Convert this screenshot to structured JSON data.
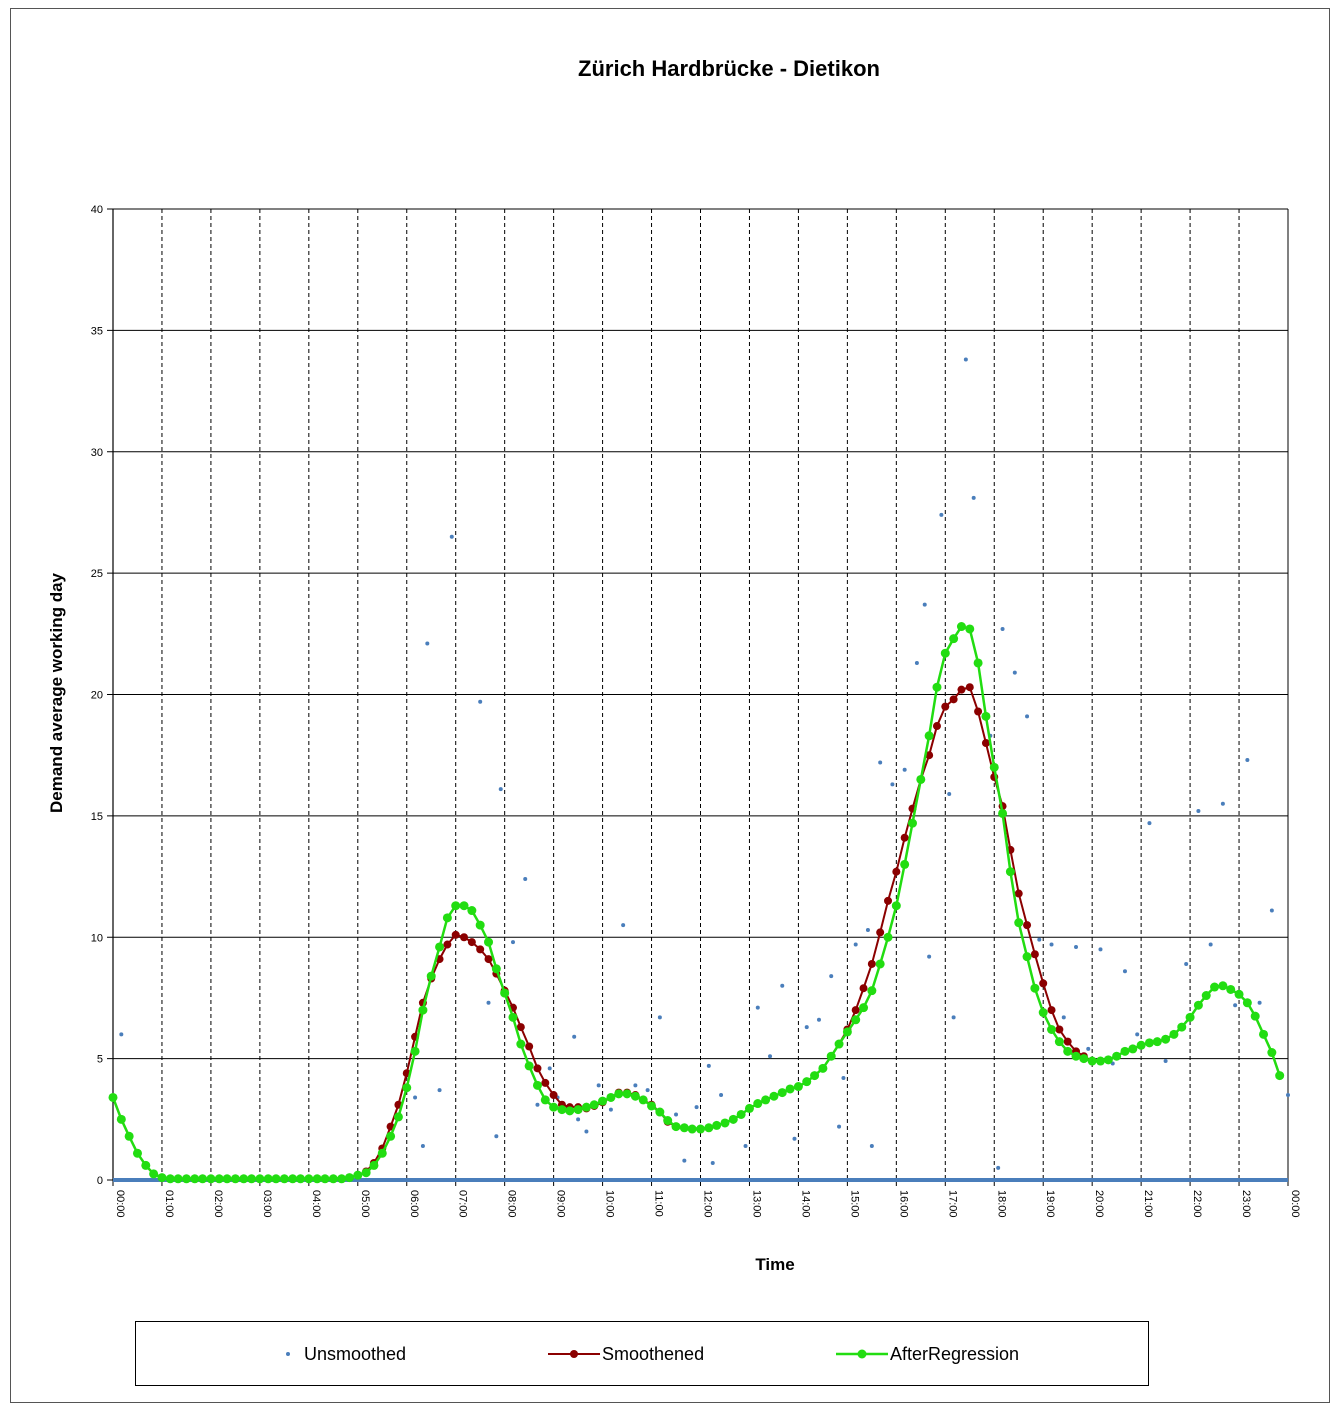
{
  "chart_data": {
    "type": "line",
    "title": "Zürich Hardbrücke - Dietikon",
    "xlabel": "Time",
    "ylabel": "Demand  average working day",
    "ylim": [
      0,
      40
    ],
    "yticks": [
      0,
      5,
      10,
      15,
      20,
      25,
      30,
      35,
      40
    ],
    "xlim": [
      0,
      24
    ],
    "xtick_labels": [
      "00:00",
      "01:00",
      "02:00",
      "03:00",
      "04:00",
      "05:00",
      "06:00",
      "07:00",
      "08:00",
      "09:00",
      "10:00",
      "11:00",
      "12:00",
      "13:00",
      "14:00",
      "15:00",
      "16:00",
      "17:00",
      "18:00",
      "19:00",
      "20:00",
      "21:00",
      "22:00",
      "23:00",
      "00:00"
    ],
    "grid": "horizontal solid, vertical dashed",
    "legend_position": "bottom",
    "series": [
      {
        "name": "Unsmoothed",
        "style": "markers",
        "color": "#4a7ebb",
        "points": [
          [
            0.17,
            6.0
          ],
          [
            6.17,
            3.4
          ],
          [
            6.33,
            1.4
          ],
          [
            6.42,
            22.1
          ],
          [
            6.67,
            3.7
          ],
          [
            6.92,
            26.5
          ],
          [
            7.5,
            19.7
          ],
          [
            7.67,
            7.3
          ],
          [
            7.83,
            1.8
          ],
          [
            7.92,
            16.1
          ],
          [
            8.17,
            9.8
          ],
          [
            8.42,
            12.4
          ],
          [
            8.67,
            3.1
          ],
          [
            8.92,
            4.6
          ],
          [
            9.08,
            3.4
          ],
          [
            9.42,
            5.9
          ],
          [
            9.5,
            2.5
          ],
          [
            9.67,
            2.0
          ],
          [
            9.92,
            3.9
          ],
          [
            10.17,
            2.9
          ],
          [
            10.42,
            10.5
          ],
          [
            10.67,
            3.9
          ],
          [
            10.92,
            3.7
          ],
          [
            11.17,
            6.7
          ],
          [
            11.5,
            2.7
          ],
          [
            11.67,
            0.8
          ],
          [
            11.92,
            3.0
          ],
          [
            12.17,
            4.7
          ],
          [
            12.25,
            0.7
          ],
          [
            12.42,
            3.5
          ],
          [
            12.67,
            2.4
          ],
          [
            12.92,
            1.4
          ],
          [
            13.17,
            7.1
          ],
          [
            13.42,
            5.1
          ],
          [
            13.67,
            8.0
          ],
          [
            13.92,
            1.7
          ],
          [
            14.17,
            6.3
          ],
          [
            14.42,
            6.6
          ],
          [
            14.67,
            8.4
          ],
          [
            14.83,
            2.2
          ],
          [
            14.92,
            4.2
          ],
          [
            15.17,
            9.7
          ],
          [
            15.42,
            10.3
          ],
          [
            15.5,
            1.4
          ],
          [
            15.67,
            17.2
          ],
          [
            15.92,
            16.3
          ],
          [
            16.17,
            16.9
          ],
          [
            16.42,
            21.3
          ],
          [
            16.58,
            23.7
          ],
          [
            16.67,
            9.2
          ],
          [
            16.92,
            27.4
          ],
          [
            17.08,
            15.9
          ],
          [
            17.17,
            6.7
          ],
          [
            17.42,
            33.8
          ],
          [
            17.58,
            28.1
          ],
          [
            17.92,
            18.3
          ],
          [
            18.08,
            0.5
          ],
          [
            18.17,
            22.7
          ],
          [
            18.42,
            20.9
          ],
          [
            18.67,
            19.1
          ],
          [
            18.92,
            9.9
          ],
          [
            19.17,
            9.7
          ],
          [
            19.42,
            6.7
          ],
          [
            19.67,
            9.6
          ],
          [
            19.92,
            5.4
          ],
          [
            20.17,
            9.5
          ],
          [
            20.42,
            4.8
          ],
          [
            20.67,
            8.6
          ],
          [
            20.92,
            6.0
          ],
          [
            21.17,
            14.7
          ],
          [
            21.5,
            4.9
          ],
          [
            21.92,
            8.9
          ],
          [
            22.17,
            15.2
          ],
          [
            22.42,
            9.7
          ],
          [
            22.67,
            15.5
          ],
          [
            22.92,
            7.2
          ],
          [
            23.17,
            17.3
          ],
          [
            23.42,
            7.3
          ],
          [
            23.67,
            11.1
          ],
          [
            24.0,
            3.5
          ]
        ]
      },
      {
        "name": "Smoothened",
        "style": "line-markers",
        "color": "#8b0000",
        "x": [
          0.0,
          0.17,
          0.33,
          0.5,
          0.67,
          0.83,
          1.0,
          1.17,
          1.33,
          1.5,
          1.67,
          1.83,
          2.0,
          2.17,
          2.33,
          2.5,
          2.67,
          2.83,
          3.0,
          3.17,
          3.33,
          3.5,
          3.67,
          3.83,
          4.0,
          4.17,
          4.33,
          4.5,
          4.67,
          4.83,
          5.0,
          5.17,
          5.33,
          5.5,
          5.67,
          5.83,
          6.0,
          6.17,
          6.33,
          6.5,
          6.67,
          6.83,
          7.0,
          7.17,
          7.33,
          7.5,
          7.67,
          7.83,
          8.0,
          8.17,
          8.33,
          8.5,
          8.67,
          8.83,
          9.0,
          9.17,
          9.33,
          9.5,
          9.67,
          9.83,
          10.0,
          10.17,
          10.33,
          10.5,
          10.67,
          10.83,
          11.0,
          11.17,
          11.33,
          11.5,
          11.67,
          11.83,
          12.0,
          12.17,
          12.33,
          12.5,
          12.67,
          12.83,
          13.0,
          13.17,
          13.33,
          13.5,
          13.67,
          13.83,
          14.0,
          14.17,
          14.33,
          14.5,
          14.67,
          14.83,
          15.0,
          15.17,
          15.33,
          15.5,
          15.67,
          15.83,
          16.0,
          16.17,
          16.33,
          16.5,
          16.67,
          16.83,
          17.0,
          17.17,
          17.33,
          17.5,
          17.67,
          17.83,
          18.0,
          18.17,
          18.33,
          18.5,
          18.67,
          18.83,
          19.0,
          19.17,
          19.33,
          19.5,
          19.67,
          19.83,
          20.0,
          20.17,
          20.33,
          20.5,
          20.67,
          20.83,
          21.0,
          21.17,
          21.33,
          21.5,
          21.67,
          21.83,
          22.0,
          22.17,
          22.33,
          22.5,
          22.67,
          22.83,
          23.0,
          23.17,
          23.33,
          23.5,
          23.67,
          23.83
        ],
        "values": [
          3.4,
          2.5,
          1.8,
          1.1,
          0.6,
          0.25,
          0.1,
          0.05,
          0.05,
          0.05,
          0.05,
          0.05,
          0.05,
          0.05,
          0.05,
          0.05,
          0.05,
          0.05,
          0.05,
          0.05,
          0.05,
          0.05,
          0.05,
          0.05,
          0.05,
          0.05,
          0.05,
          0.05,
          0.05,
          0.1,
          0.2,
          0.35,
          0.7,
          1.3,
          2.2,
          3.1,
          4.4,
          5.9,
          7.3,
          8.3,
          9.1,
          9.7,
          10.1,
          10.0,
          9.8,
          9.5,
          9.1,
          8.5,
          7.8,
          7.1,
          6.3,
          5.5,
          4.6,
          4.0,
          3.5,
          3.1,
          3.0,
          3.0,
          2.95,
          3.05,
          3.2,
          3.4,
          3.6,
          3.6,
          3.5,
          3.3,
          3.1,
          2.8,
          2.4,
          2.2,
          2.15,
          2.1,
          2.1,
          2.15,
          2.25,
          2.35,
          2.5,
          2.7,
          2.95,
          3.15,
          3.3,
          3.45,
          3.6,
          3.75,
          3.85,
          4.05,
          4.3,
          4.6,
          5.1,
          5.6,
          6.2,
          7.0,
          7.9,
          8.9,
          10.2,
          11.5,
          12.7,
          14.1,
          15.3,
          16.5,
          17.5,
          18.7,
          19.5,
          19.8,
          20.2,
          20.3,
          19.3,
          18.0,
          16.6,
          15.4,
          13.6,
          11.8,
          10.5,
          9.3,
          8.1,
          7.0,
          6.2,
          5.7,
          5.3,
          5.1,
          4.9,
          4.9,
          4.95,
          5.1,
          5.3,
          5.4,
          5.55,
          5.65,
          5.7,
          5.8,
          6.0,
          6.3,
          6.7,
          7.2,
          7.6,
          7.95,
          8.0,
          7.85,
          7.65,
          7.3,
          6.75,
          6.0,
          5.25,
          4.3
        ]
      },
      {
        "name": "AfterRegression",
        "style": "line-markers",
        "color": "#22dd11",
        "x": [
          0.0,
          0.17,
          0.33,
          0.5,
          0.67,
          0.83,
          1.0,
          1.17,
          1.33,
          1.5,
          1.67,
          1.83,
          2.0,
          2.17,
          2.33,
          2.5,
          2.67,
          2.83,
          3.0,
          3.17,
          3.33,
          3.5,
          3.67,
          3.83,
          4.0,
          4.17,
          4.33,
          4.5,
          4.67,
          4.83,
          5.0,
          5.17,
          5.33,
          5.5,
          5.67,
          5.83,
          6.0,
          6.17,
          6.33,
          6.5,
          6.67,
          6.83,
          7.0,
          7.17,
          7.33,
          7.5,
          7.67,
          7.83,
          8.0,
          8.17,
          8.33,
          8.5,
          8.67,
          8.83,
          9.0,
          9.17,
          9.33,
          9.5,
          9.67,
          9.83,
          10.0,
          10.17,
          10.33,
          10.5,
          10.67,
          10.83,
          11.0,
          11.17,
          11.33,
          11.5,
          11.67,
          11.83,
          12.0,
          12.17,
          12.33,
          12.5,
          12.67,
          12.83,
          13.0,
          13.17,
          13.33,
          13.5,
          13.67,
          13.83,
          14.0,
          14.17,
          14.33,
          14.5,
          14.67,
          14.83,
          15.0,
          15.17,
          15.33,
          15.5,
          15.67,
          15.83,
          16.0,
          16.17,
          16.33,
          16.5,
          16.67,
          16.83,
          17.0,
          17.17,
          17.33,
          17.5,
          17.67,
          17.83,
          18.0,
          18.17,
          18.33,
          18.5,
          18.67,
          18.83,
          19.0,
          19.17,
          19.33,
          19.5,
          19.67,
          19.83,
          20.0,
          20.17,
          20.33,
          20.5,
          20.67,
          20.83,
          21.0,
          21.17,
          21.33,
          21.5,
          21.67,
          21.83,
          22.0,
          22.17,
          22.33,
          22.5,
          22.67,
          22.83,
          23.0,
          23.17,
          23.33,
          23.5,
          23.67,
          23.83
        ],
        "values": [
          3.4,
          2.5,
          1.8,
          1.1,
          0.6,
          0.25,
          0.1,
          0.05,
          0.05,
          0.05,
          0.05,
          0.05,
          0.05,
          0.05,
          0.05,
          0.05,
          0.05,
          0.05,
          0.05,
          0.05,
          0.05,
          0.05,
          0.05,
          0.05,
          0.05,
          0.05,
          0.05,
          0.05,
          0.05,
          0.1,
          0.2,
          0.3,
          0.6,
          1.1,
          1.8,
          2.6,
          3.8,
          5.3,
          7.0,
          8.4,
          9.6,
          10.8,
          11.3,
          11.3,
          11.1,
          10.5,
          9.8,
          8.7,
          7.7,
          6.7,
          5.6,
          4.7,
          3.9,
          3.3,
          3.0,
          2.9,
          2.85,
          2.9,
          3.0,
          3.1,
          3.25,
          3.4,
          3.55,
          3.55,
          3.45,
          3.3,
          3.05,
          2.8,
          2.45,
          2.2,
          2.15,
          2.1,
          2.1,
          2.15,
          2.25,
          2.35,
          2.5,
          2.7,
          2.95,
          3.15,
          3.3,
          3.45,
          3.6,
          3.75,
          3.85,
          4.05,
          4.3,
          4.6,
          5.1,
          5.6,
          6.1,
          6.6,
          7.1,
          7.8,
          8.9,
          10.0,
          11.3,
          13.0,
          14.7,
          16.5,
          18.3,
          20.3,
          21.7,
          22.3,
          22.8,
          22.7,
          21.3,
          19.1,
          17.0,
          15.1,
          12.7,
          10.6,
          9.2,
          7.9,
          6.9,
          6.2,
          5.7,
          5.3,
          5.1,
          5.0,
          4.9,
          4.9,
          4.95,
          5.1,
          5.3,
          5.4,
          5.55,
          5.65,
          5.7,
          5.8,
          6.0,
          6.3,
          6.7,
          7.2,
          7.6,
          7.95,
          8.0,
          7.85,
          7.65,
          7.3,
          6.75,
          6.0,
          5.25,
          4.3
        ]
      }
    ]
  }
}
